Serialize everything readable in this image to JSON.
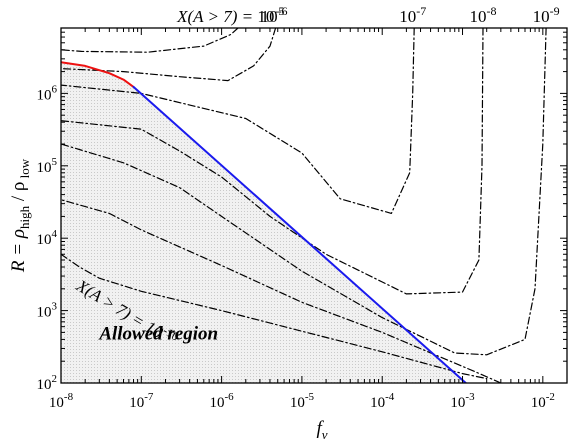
{
  "chart_data": {
    "type": "line",
    "title": "",
    "xlabel": "f_v",
    "ylabel": "R = ρ_high / ρ_low",
    "xscale": "log",
    "yscale": "log",
    "xlim": [
      1e-08,
      0.02
    ],
    "ylim": [
      100,
      8000000
    ],
    "grid": false,
    "legend": "none",
    "x_ticks": [
      {
        "value": 1e-08,
        "base": "10",
        "exp": "-8"
      },
      {
        "value": 1e-07,
        "base": "10",
        "exp": "-7"
      },
      {
        "value": 1e-06,
        "base": "10",
        "exp": "-6"
      },
      {
        "value": 1e-05,
        "base": "10",
        "exp": "-5"
      },
      {
        "value": 0.0001,
        "base": "10",
        "exp": "-4"
      },
      {
        "value": 0.001,
        "base": "10",
        "exp": "-3"
      },
      {
        "value": 0.01,
        "base": "10",
        "exp": "-2"
      }
    ],
    "y_ticks": [
      {
        "value": 100,
        "base": "10",
        "exp": "2"
      },
      {
        "value": 1000,
        "base": "10",
        "exp": "3"
      },
      {
        "value": 10000,
        "base": "10",
        "exp": "4"
      },
      {
        "value": 100000,
        "base": "10",
        "exp": "5"
      },
      {
        "value": 1000000,
        "base": "10",
        "exp": "6"
      }
    ],
    "top_labels": [
      {
        "prefix": "X(A > 7) = ",
        "base": "10",
        "exp": "-5",
        "x": 1.3e-06
      },
      {
        "prefix": "",
        "base": "10",
        "exp": "-6",
        "x": 4.5e-06
      },
      {
        "prefix": "",
        "base": "10",
        "exp": "-7",
        "x": 0.00024
      },
      {
        "prefix": "",
        "base": "10",
        "exp": "-8",
        "x": 0.0018
      },
      {
        "prefix": "",
        "base": "10",
        "exp": "-9",
        "x": 0.011
      }
    ],
    "annotations": [
      {
        "text": "X(A > 7) = 10",
        "exp": "-10",
        "x": 1.5e-08,
        "y": 2000,
        "rotation": 31
      }
    ],
    "region_label": {
      "text": "Allowed region",
      "x": 3e-08,
      "y": 400
    },
    "colors": {
      "boundary_blue": "#1a1aee",
      "boundary_red": "#ee1111",
      "allowed_fill": "#ececec",
      "contour": "#000000"
    },
    "series": [
      {
        "style": "dashdot",
        "points": [
          [
            1.6e-06,
            8000000
          ],
          [
            1.3e-06,
            6500000
          ],
          [
            6e-07,
            4500000
          ],
          [
            1.2e-07,
            3700000
          ],
          [
            1.8e-08,
            3800000
          ],
          [
            1e-08,
            4000000
          ]
        ]
      },
      {
        "style": "dashdot",
        "points": [
          [
            4.7e-06,
            8000000
          ],
          [
            4e-06,
            4500000
          ],
          [
            2.5e-06,
            2400000
          ],
          [
            1.2e-06,
            1500000
          ],
          [
            3e-07,
            1700000
          ],
          [
            6e-08,
            2000000
          ],
          [
            1e-08,
            2200000
          ]
        ]
      },
      {
        "style": "dashdot",
        "points": [
          [
            0.00025,
            8000000
          ],
          [
            0.00024,
            1000000
          ],
          [
            0.00022,
            80000
          ],
          [
            0.00013,
            22000
          ],
          [
            3e-05,
            35000
          ],
          [
            1e-05,
            150000
          ],
          [
            2e-06,
            450000
          ],
          [
            1e-07,
            1000000
          ],
          [
            1e-08,
            1300000
          ]
        ]
      },
      {
        "style": "dashdot",
        "points": [
          [
            0.0018,
            8000000
          ],
          [
            0.00175,
            100000
          ],
          [
            0.0016,
            5000
          ],
          [
            0.001,
            1800
          ],
          [
            0.0002,
            1700
          ],
          [
            2e-05,
            6000
          ],
          [
            4e-06,
            20000
          ],
          [
            1e-06,
            70000
          ],
          [
            3e-07,
            160000
          ],
          [
            1e-07,
            320000
          ],
          [
            1e-08,
            420000
          ]
        ]
      },
      {
        "style": "dashdot",
        "points": [
          [
            0.011,
            8000000
          ],
          [
            0.01,
            200000
          ],
          [
            0.008,
            2000
          ],
          [
            0.006,
            400
          ],
          [
            0.002,
            245
          ],
          [
            0.0008,
            260
          ],
          [
            0.0001,
            800
          ],
          [
            1e-05,
            3500
          ],
          [
            1e-06,
            20000
          ],
          [
            3e-07,
            50000
          ],
          [
            6e-08,
            110000
          ],
          [
            1e-08,
            200000
          ]
        ]
      },
      {
        "style": "dashdot",
        "points": [
          [
            0.003,
            100
          ],
          [
            0.0015,
            140
          ],
          [
            0.0001,
            500
          ],
          [
            1e-05,
            1300
          ],
          [
            1e-06,
            4200
          ],
          [
            1e-07,
            13000
          ],
          [
            4e-08,
            22000
          ],
          [
            1e-08,
            34000
          ]
        ]
      },
      {
        "style": "dashdot",
        "points": [
          [
            1e-08,
            6000
          ],
          [
            1.7e-08,
            4000
          ],
          [
            3e-08,
            2800
          ],
          [
            1e-07,
            1850
          ],
          [
            1e-06,
            1000
          ],
          [
            1e-05,
            520
          ],
          [
            0.0001,
            270
          ],
          [
            0.001,
            135
          ],
          [
            0.002,
            115
          ]
        ]
      },
      {
        "style": "solid",
        "color": "#ee1111",
        "points": [
          [
            1e-08,
            2700000
          ],
          [
            2e-08,
            2400000
          ],
          [
            4e-08,
            1900000
          ],
          [
            6e-08,
            1550000
          ],
          [
            8e-08,
            1230000
          ]
        ]
      },
      {
        "style": "solid",
        "color": "#1a1aee",
        "points": [
          [
            8e-08,
            1230000
          ],
          [
            0.0011,
            100
          ]
        ]
      }
    ]
  }
}
